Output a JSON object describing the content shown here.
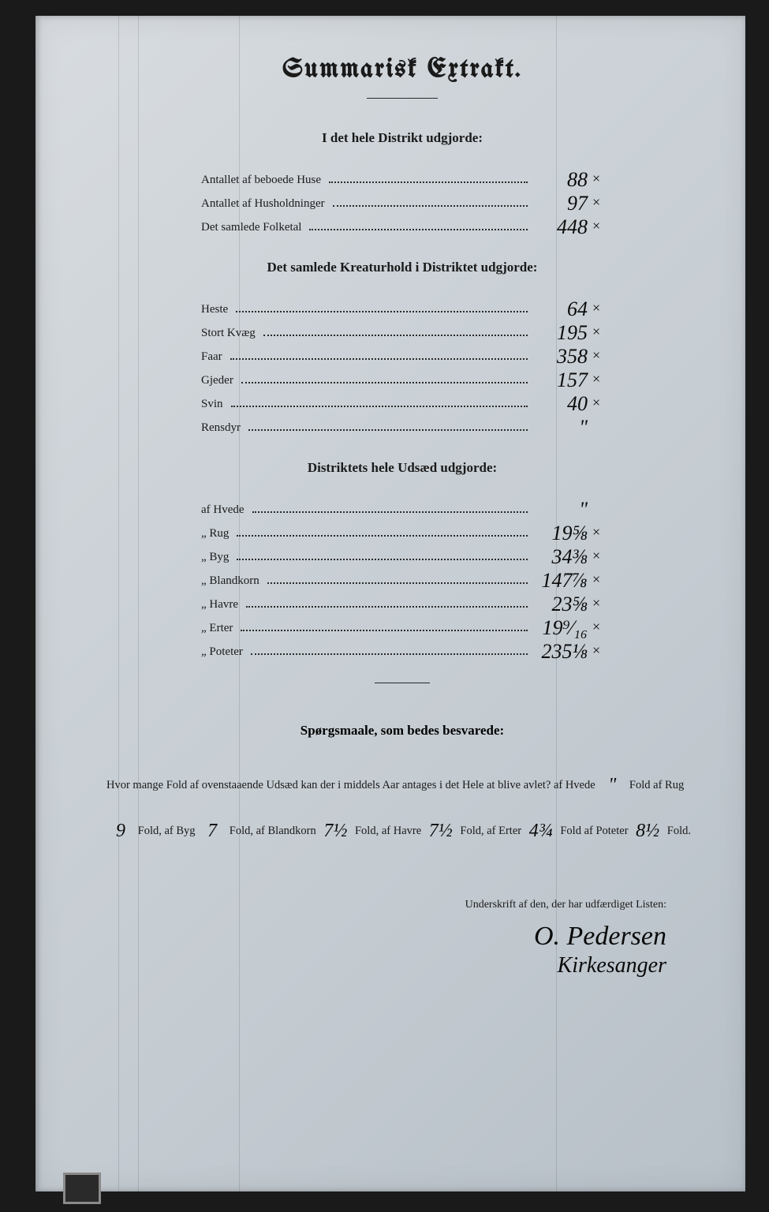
{
  "title": "Summarisk Extrakt.",
  "section1": {
    "heading": "I det hele Distrikt udgjorde:",
    "rows": [
      {
        "label": "Antallet af beboede Huse",
        "value": "88",
        "mark": "×"
      },
      {
        "label": "Antallet af Husholdninger",
        "value": "97",
        "mark": "×"
      },
      {
        "label": "Det samlede Folketal",
        "value": "448",
        "mark": "×"
      }
    ]
  },
  "section2": {
    "heading": "Det samlede Kreaturhold i Distriktet udgjorde:",
    "rows": [
      {
        "label": "Heste",
        "value": "64",
        "mark": "×"
      },
      {
        "label": "Stort Kvæg",
        "value": "195",
        "mark": "×"
      },
      {
        "label": "Faar",
        "value": "358",
        "mark": "×"
      },
      {
        "label": "Gjeder",
        "value": "157",
        "mark": "×"
      },
      {
        "label": "Svin",
        "value": "40",
        "mark": "×"
      },
      {
        "label": "Rensdyr",
        "value": "\"",
        "mark": ""
      }
    ]
  },
  "section3": {
    "heading": "Distriktets hele Udsæd udgjorde:",
    "rows": [
      {
        "label": "af Hvede",
        "value": "\"",
        "mark": ""
      },
      {
        "label": "„ Rug",
        "value": "19⅝",
        "mark": "×"
      },
      {
        "label": "„ Byg",
        "value": "34⅜",
        "mark": "×"
      },
      {
        "label": "„ Blandkorn",
        "value": "147⅞",
        "mark": "×"
      },
      {
        "label": "„ Havre",
        "value": "23⅝",
        "mark": "×"
      },
      {
        "label": "„ Erter",
        "value": "19⁹⁄₁₆",
        "mark": "×"
      },
      {
        "label": "„ Poteter",
        "value": "235⅛",
        "mark": "×"
      }
    ]
  },
  "questions": {
    "heading": "Spørgsmaale, som bedes besvarede:",
    "intro": "Hvor mange Fold af ovenstaaende Udsæd kan der i middels Aar antages i det Hele at blive avlet?",
    "items": [
      {
        "crop": "af Hvede",
        "value": "\"",
        "unit": "Fold"
      },
      {
        "crop": "af Rug",
        "value": "9",
        "unit": "Fold,"
      },
      {
        "crop": "af Byg",
        "value": "7",
        "unit": "Fold,"
      },
      {
        "crop": "af Blandkorn",
        "value": "7½",
        "unit": "Fold,"
      },
      {
        "crop": "af Havre",
        "value": "7½",
        "unit": "Fold,"
      },
      {
        "crop": "af Erter",
        "value": "4¾",
        "unit": "Fold"
      },
      {
        "crop": "af Poteter",
        "value": "8½",
        "unit": "Fold."
      }
    ]
  },
  "signature": {
    "label": "Underskrift af den, der har udfærdiget Listen:",
    "name": "O. Pedersen",
    "title": "Kirkesanger"
  },
  "colors": {
    "paper_bg": "#cdd3d8",
    "ink": "#1a1a1a",
    "handwriting": "#0a0a0a",
    "ruling": "rgba(60,70,80,0.18)"
  }
}
